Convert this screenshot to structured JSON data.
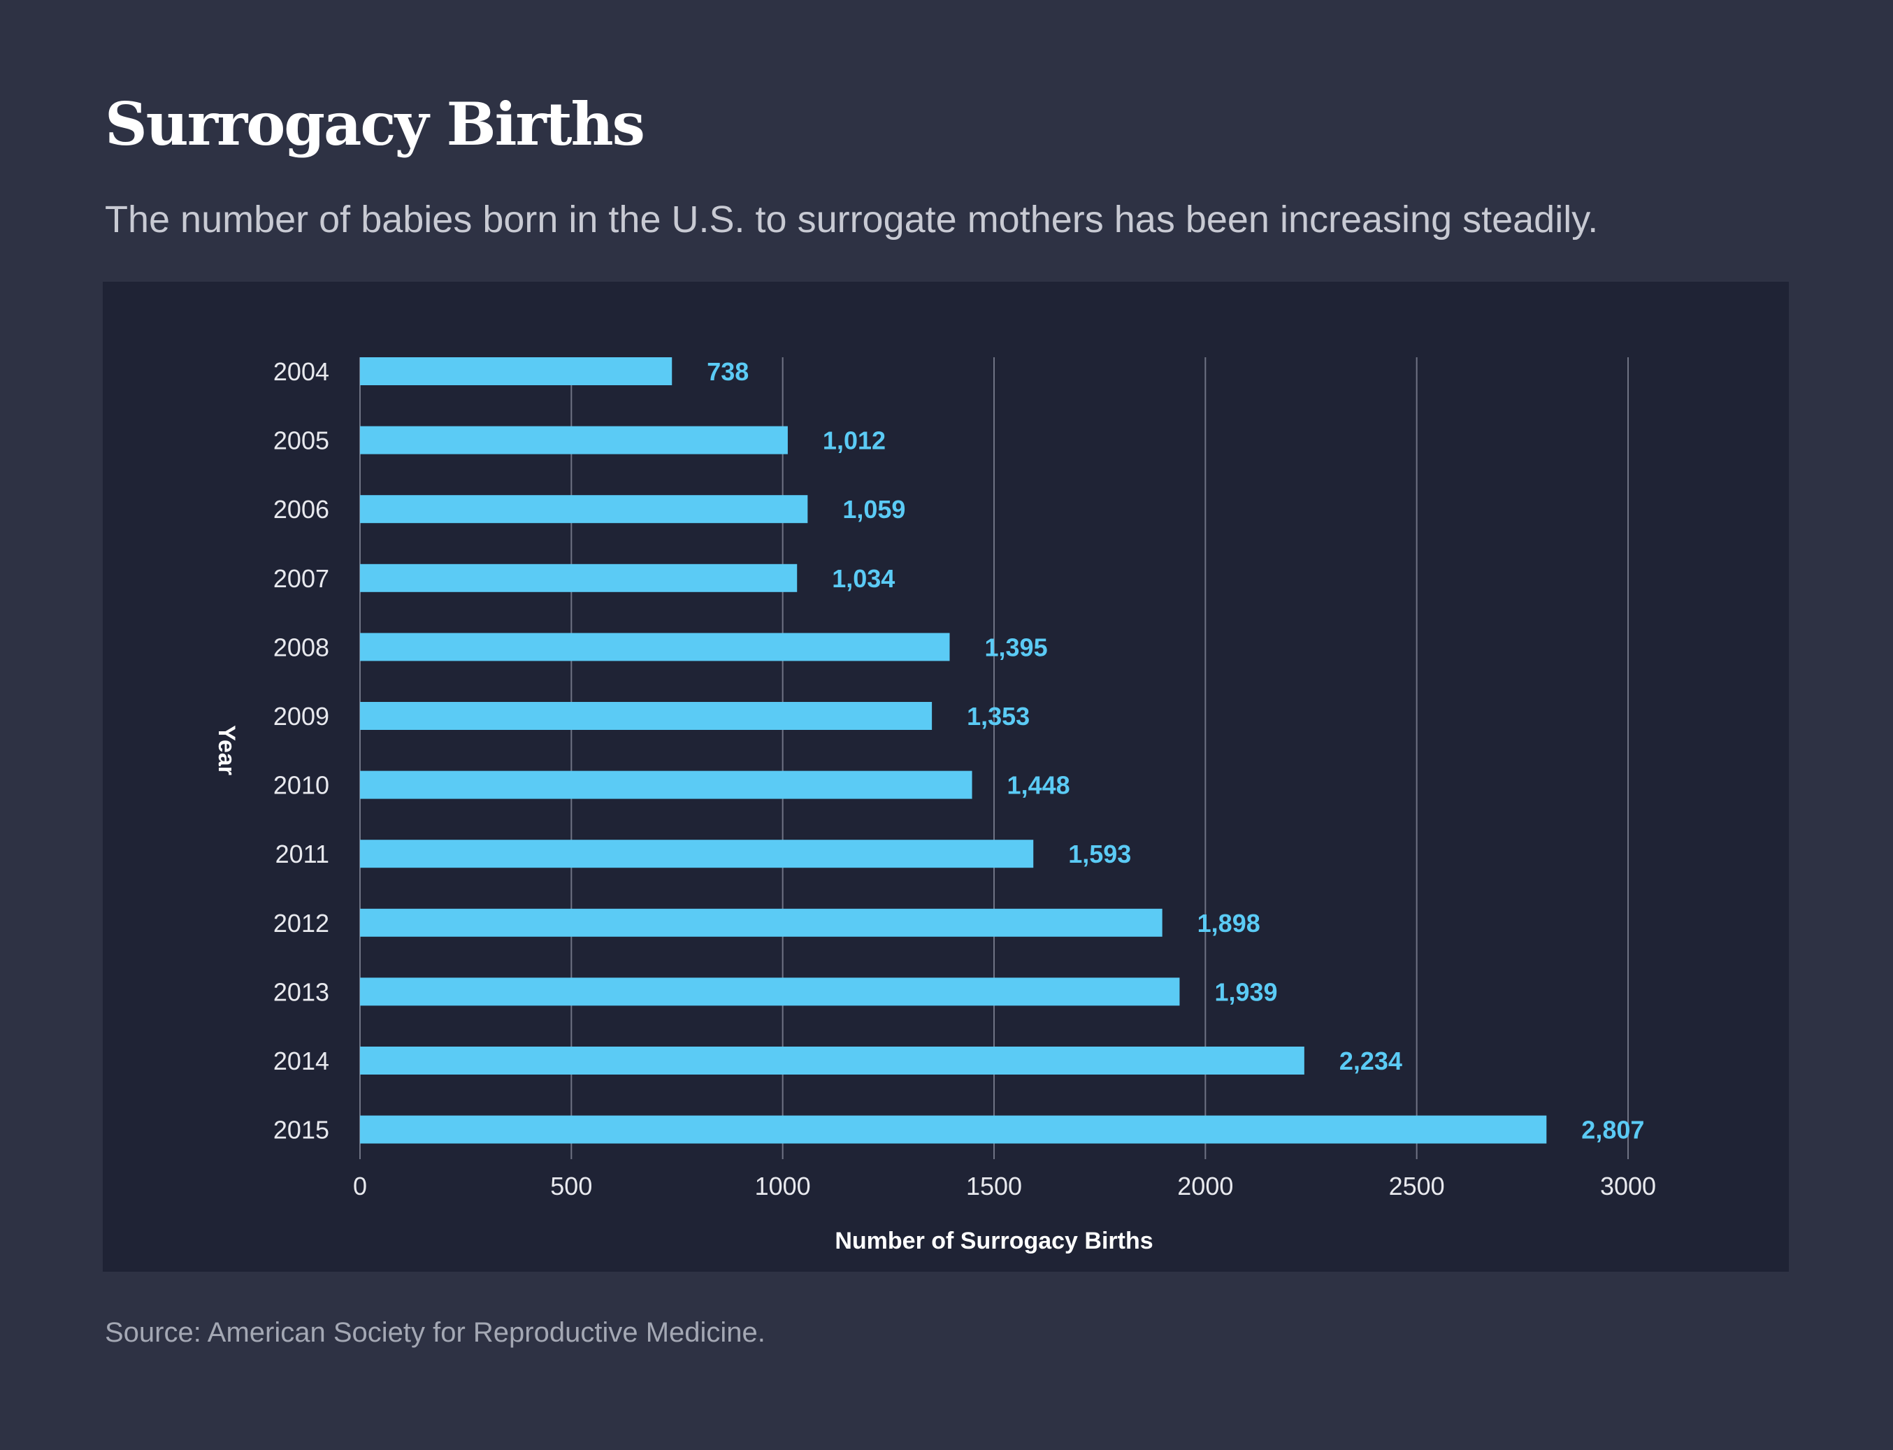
{
  "header": {
    "title": "Surrogacy Births",
    "subtitle": "The number of babies born in the U.S. to surrogate mothers has been increasing steadily."
  },
  "footer": {
    "source": "Source: American Society for Reproductive Medicine."
  },
  "colors": {
    "background": "#2e3244",
    "panel": "#1f2335",
    "bar": "#5bcbf5",
    "grid": "#6f7384"
  },
  "chart_data": {
    "type": "bar",
    "orientation": "horizontal",
    "title": "Surrogacy Births",
    "xlabel": "Number of Surrogacy Births",
    "ylabel": "Year",
    "categories": [
      "2004",
      "2005",
      "2006",
      "2007",
      "2008",
      "2009",
      "2010",
      "2011",
      "2012",
      "2013",
      "2014",
      "2015"
    ],
    "values": [
      738,
      1012,
      1059,
      1034,
      1395,
      1353,
      1448,
      1593,
      1898,
      1939,
      2234,
      2807
    ],
    "value_labels": [
      "738",
      "1,012",
      "1,059",
      "1,034",
      "1,395",
      "1,353",
      "1,448",
      "1,593",
      "1,898",
      "1,939",
      "2,234",
      "2,807"
    ],
    "xlim": [
      0,
      3000
    ],
    "xticks": [
      0,
      500,
      1000,
      1500,
      2000,
      2500,
      3000
    ],
    "xtick_labels": [
      "0",
      "500",
      "1000",
      "1500",
      "2000",
      "2500",
      "3000"
    ],
    "grid": true
  }
}
